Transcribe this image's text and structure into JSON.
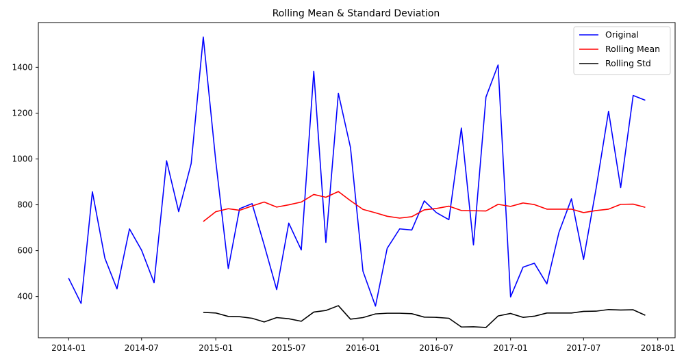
{
  "chart_data": {
    "type": "line",
    "title": "Rolling Mean & Standard Deviation",
    "xlabel": "",
    "ylabel": "",
    "x": [
      "2014-01",
      "2014-02",
      "2014-03",
      "2014-04",
      "2014-05",
      "2014-06",
      "2014-07",
      "2014-08",
      "2014-09",
      "2014-10",
      "2014-11",
      "2014-12",
      "2015-01",
      "2015-02",
      "2015-03",
      "2015-04",
      "2015-05",
      "2015-06",
      "2015-07",
      "2015-08",
      "2015-09",
      "2015-10",
      "2015-11",
      "2015-12",
      "2016-01",
      "2016-02",
      "2016-03",
      "2016-04",
      "2016-05",
      "2016-06",
      "2016-07",
      "2016-08",
      "2016-09",
      "2016-10",
      "2016-11",
      "2016-12",
      "2017-01",
      "2017-02",
      "2017-03",
      "2017-04",
      "2017-05",
      "2017-06",
      "2017-07",
      "2017-08",
      "2017-09",
      "2017-10",
      "2017-11",
      "2017-12"
    ],
    "series": [
      {
        "name": "Original",
        "color": "#0000ff",
        "values": [
          480,
          370,
          857,
          567,
          433,
          695,
          602,
          460,
          992,
          770,
          980,
          1532,
          990,
          522,
          783,
          805,
          625,
          430,
          720,
          603,
          1382,
          636,
          1286,
          1050,
          510,
          358,
          610,
          695,
          690,
          817,
          766,
          735,
          1135,
          625,
          1270,
          1410,
          398,
          528,
          545,
          455,
          680,
          826,
          562,
          870,
          1208,
          875,
          1277,
          1256
        ]
      },
      {
        "name": "Rolling Mean",
        "color": "#ff0000",
        "values": [
          null,
          null,
          null,
          null,
          null,
          null,
          null,
          null,
          null,
          null,
          null,
          727,
          770,
          783,
          776,
          795,
          812,
          790,
          800,
          812,
          845,
          833,
          858,
          818,
          780,
          765,
          750,
          742,
          748,
          778,
          784,
          794,
          775,
          774,
          773,
          802,
          793,
          808,
          801,
          781,
          781,
          781,
          766,
          775,
          781,
          802,
          803,
          789
        ]
      },
      {
        "name": "Rolling Std",
        "color": "#000000",
        "values": [
          null,
          null,
          null,
          null,
          null,
          null,
          null,
          null,
          null,
          null,
          null,
          331,
          328,
          313,
          312,
          305,
          289,
          308,
          303,
          292,
          332,
          339,
          360,
          301,
          308,
          324,
          327,
          327,
          325,
          310,
          309,
          305,
          267,
          268,
          265,
          315,
          326,
          309,
          314,
          328,
          328,
          328,
          335,
          336,
          343,
          341,
          342,
          318
        ]
      }
    ],
    "x_ticks": [
      "2014-01",
      "2014-07",
      "2015-01",
      "2015-07",
      "2016-01",
      "2016-07",
      "2017-01",
      "2017-07",
      "2018-01"
    ],
    "y_ticks": [
      400,
      600,
      800,
      1000,
      1200,
      1400
    ],
    "ylim": [
      220,
      1595
    ],
    "xlim": [
      "2013-10-18",
      "2018-02-13"
    ],
    "grid": false,
    "legend_position": "top-right"
  }
}
